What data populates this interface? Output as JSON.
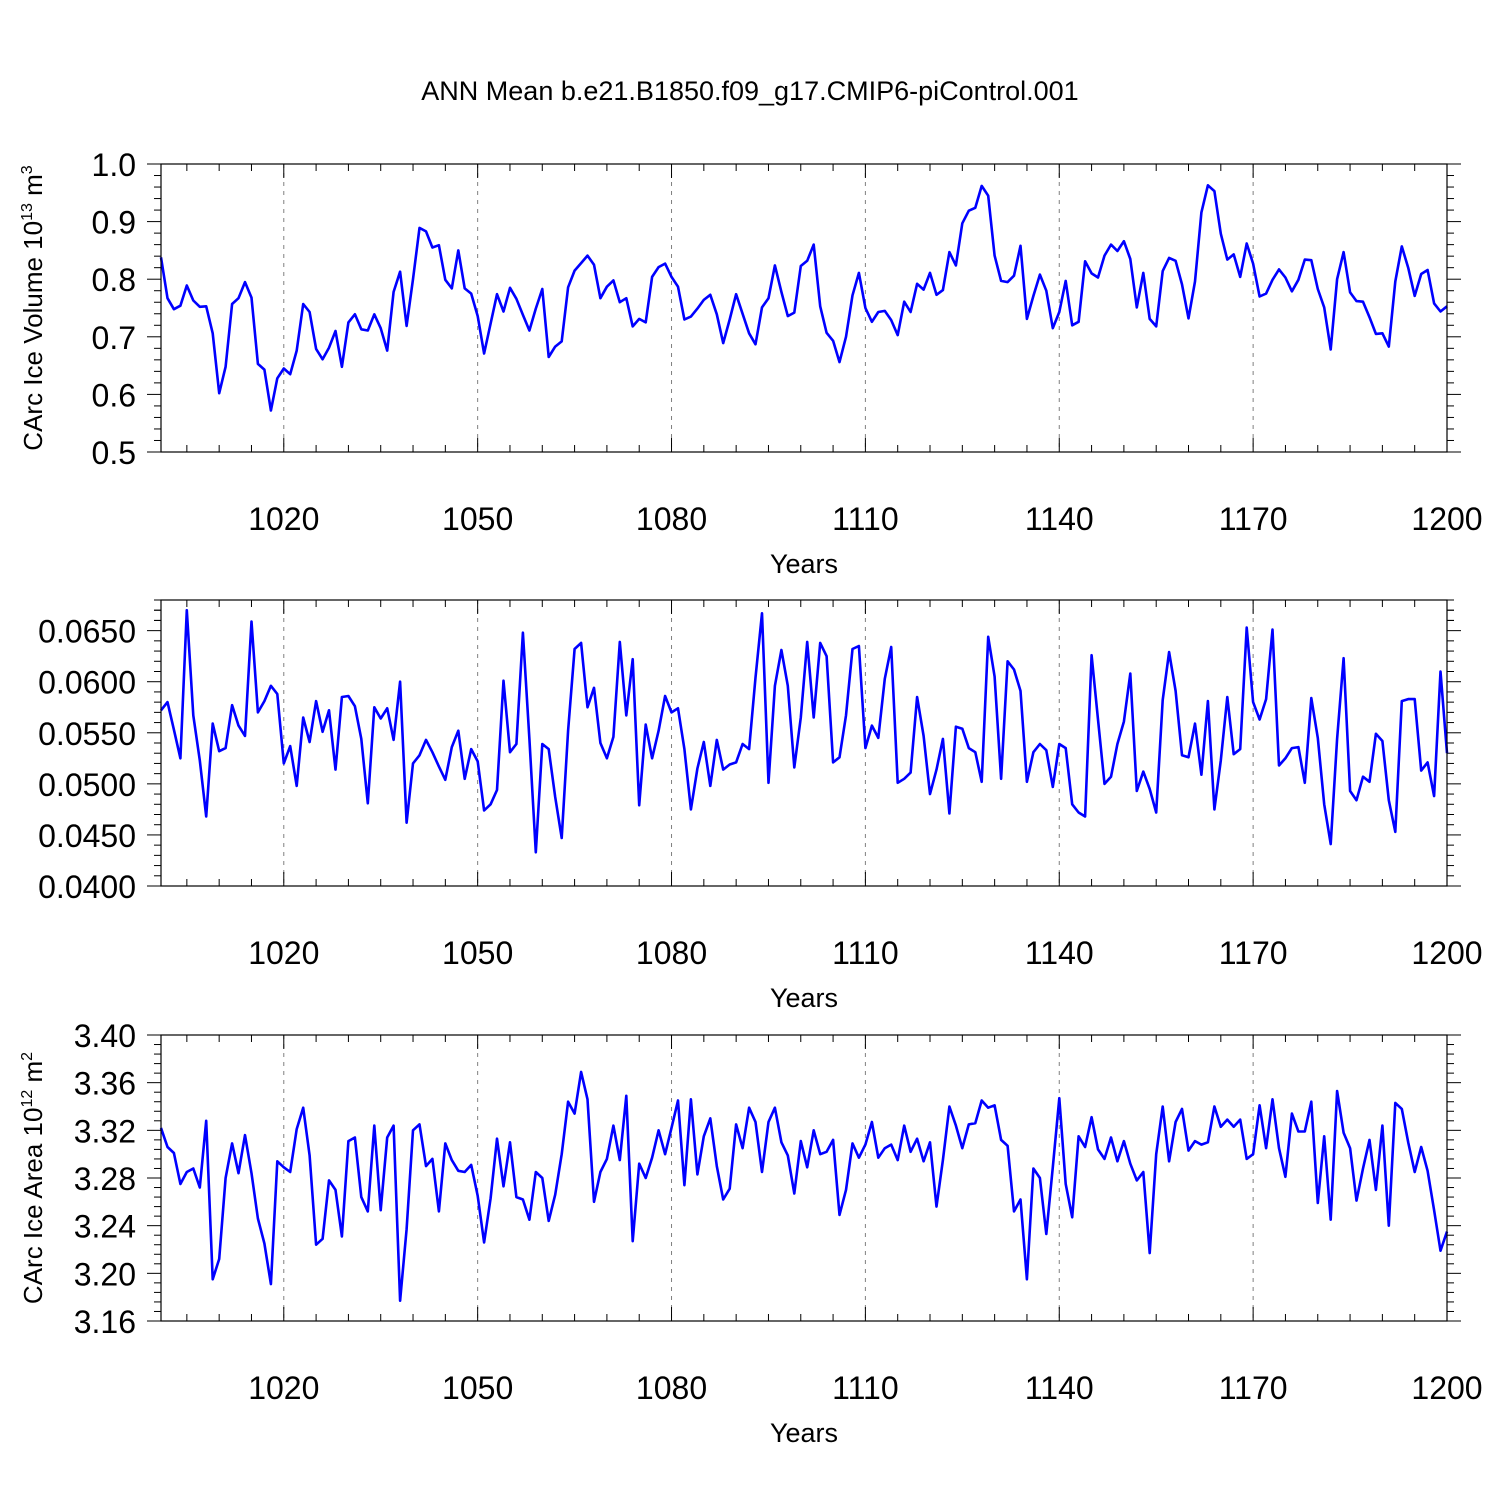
{
  "figure": {
    "title": "ANN Mean b.e21.B1850.f09_g17.CMIP6-piControl.001",
    "line_color": "#0000ff",
    "grid_color": "#808080"
  },
  "chart_data": [
    {
      "type": "line",
      "xlabel": "Years",
      "ylabel_main": "CArc Ice Volume 10",
      "ylabel_exp": "13",
      "ylabel_unit": " m",
      "ylabel_unit_exp": "3",
      "xlim": [
        1001,
        1200
      ],
      "ylim": [
        0.5,
        1.0
      ],
      "xticks": [
        1020,
        1050,
        1080,
        1110,
        1140,
        1170,
        1200
      ],
      "yticks": [
        0.5,
        0.6,
        0.7,
        0.8,
        0.9,
        1.0
      ],
      "ytick_labels": [
        "0.5",
        "0.6",
        "0.7",
        "0.8",
        "0.9",
        "1.0"
      ],
      "grid": "vertical dashed at major x ticks",
      "series": [
        {
          "x_start": 1001,
          "values": [
            0.838,
            0.767,
            0.748,
            0.754,
            0.789,
            0.763,
            0.752,
            0.753,
            0.706,
            0.602,
            0.648,
            0.757,
            0.767,
            0.795,
            0.768,
            0.653,
            0.643,
            0.572,
            0.628,
            0.645,
            0.635,
            0.676,
            0.757,
            0.743,
            0.679,
            0.661,
            0.681,
            0.71,
            0.648,
            0.725,
            0.739,
            0.713,
            0.711,
            0.739,
            0.715,
            0.676,
            0.778,
            0.813,
            0.719,
            0.8,
            0.889,
            0.883,
            0.855,
            0.859,
            0.799,
            0.784,
            0.85,
            0.784,
            0.775,
            0.736,
            0.671,
            0.723,
            0.774,
            0.744,
            0.785,
            0.766,
            0.738,
            0.711,
            0.749,
            0.783,
            0.665,
            0.683,
            0.692,
            0.786,
            0.815,
            0.828,
            0.841,
            0.825,
            0.767,
            0.787,
            0.798,
            0.76,
            0.767,
            0.718,
            0.731,
            0.725,
            0.804,
            0.821,
            0.827,
            0.804,
            0.787,
            0.73,
            0.735,
            0.749,
            0.764,
            0.773,
            0.739,
            0.689,
            0.73,
            0.774,
            0.74,
            0.706,
            0.687,
            0.751,
            0.767,
            0.824,
            0.778,
            0.736,
            0.742,
            0.823,
            0.832,
            0.86,
            0.753,
            0.707,
            0.693,
            0.656,
            0.7,
            0.772,
            0.811,
            0.75,
            0.726,
            0.743,
            0.745,
            0.729,
            0.703,
            0.761,
            0.743,
            0.792,
            0.782,
            0.811,
            0.773,
            0.781,
            0.847,
            0.824,
            0.897,
            0.919,
            0.924,
            0.962,
            0.945,
            0.841,
            0.797,
            0.795,
            0.806,
            0.858,
            0.731,
            0.771,
            0.808,
            0.78,
            0.715,
            0.743,
            0.797,
            0.72,
            0.726,
            0.831,
            0.81,
            0.803,
            0.841,
            0.86,
            0.849,
            0.866,
            0.835,
            0.751,
            0.811,
            0.731,
            0.718,
            0.814,
            0.837,
            0.832,
            0.791,
            0.732,
            0.796,
            0.916,
            0.963,
            0.953,
            0.879,
            0.834,
            0.843,
            0.804,
            0.862,
            0.827,
            0.77,
            0.775,
            0.799,
            0.817,
            0.803,
            0.779,
            0.799,
            0.834,
            0.833,
            0.783,
            0.751,
            0.678,
            0.8,
            0.847,
            0.777,
            0.762,
            0.761,
            0.734,
            0.705,
            0.706,
            0.683,
            0.796,
            0.857,
            0.82,
            0.771,
            0.809,
            0.816,
            0.758,
            0.744,
            0.753
          ]
        }
      ]
    },
    {
      "type": "line",
      "xlabel": "Years",
      "ylabel_main": "",
      "ylabel_exp": "",
      "ylabel_unit": "",
      "ylabel_unit_exp": "",
      "xlim": [
        1001,
        1200
      ],
      "ylim": [
        0.04,
        0.068
      ],
      "xticks": [
        1020,
        1050,
        1080,
        1110,
        1140,
        1170,
        1200
      ],
      "yticks": [
        0.04,
        0.045,
        0.05,
        0.055,
        0.06,
        0.065
      ],
      "ytick_labels": [
        "0.0400",
        "0.0450",
        "0.0500",
        "0.0550",
        "0.0600",
        "0.0650"
      ],
      "grid": "vertical dashed at major x ticks",
      "series": [
        {
          "x_start": 1001,
          "values": [
            0.0572,
            0.058,
            0.0553,
            0.0525,
            0.067,
            0.0567,
            0.0523,
            0.0468,
            0.0559,
            0.0532,
            0.0535,
            0.0577,
            0.0557,
            0.0547,
            0.0659,
            0.057,
            0.0581,
            0.0596,
            0.0588,
            0.052,
            0.0537,
            0.0498,
            0.0565,
            0.0541,
            0.0581,
            0.0551,
            0.0572,
            0.0514,
            0.0585,
            0.0586,
            0.0576,
            0.0544,
            0.0481,
            0.0575,
            0.0564,
            0.0574,
            0.0543,
            0.06,
            0.0462,
            0.052,
            0.0528,
            0.0543,
            0.0531,
            0.0517,
            0.0504,
            0.0536,
            0.0552,
            0.0505,
            0.0534,
            0.0522,
            0.0474,
            0.048,
            0.0494,
            0.0601,
            0.0531,
            0.0539,
            0.0648,
            0.0544,
            0.0433,
            0.0539,
            0.0534,
            0.0487,
            0.0447,
            0.0552,
            0.0632,
            0.0638,
            0.0575,
            0.0594,
            0.054,
            0.0525,
            0.0546,
            0.0639,
            0.0567,
            0.0622,
            0.0479,
            0.0558,
            0.0525,
            0.0552,
            0.0586,
            0.057,
            0.0574,
            0.0534,
            0.0475,
            0.0515,
            0.0541,
            0.0498,
            0.0543,
            0.0514,
            0.0519,
            0.0521,
            0.0539,
            0.0534,
            0.0604,
            0.0667,
            0.0501,
            0.0596,
            0.0631,
            0.0596,
            0.0516,
            0.0565,
            0.0639,
            0.0565,
            0.0638,
            0.0625,
            0.0521,
            0.0526,
            0.0567,
            0.0632,
            0.0635,
            0.0535,
            0.0557,
            0.0545,
            0.0603,
            0.0634,
            0.0501,
            0.0505,
            0.0511,
            0.0585,
            0.0547,
            0.049,
            0.0514,
            0.0544,
            0.0471,
            0.0556,
            0.0554,
            0.0535,
            0.0531,
            0.0502,
            0.0644,
            0.0605,
            0.0505,
            0.062,
            0.0612,
            0.0591,
            0.0502,
            0.0531,
            0.0539,
            0.0533,
            0.0497,
            0.0539,
            0.0535,
            0.048,
            0.0472,
            0.0468,
            0.0626,
            0.0563,
            0.05,
            0.0507,
            0.0539,
            0.0561,
            0.0608,
            0.0493,
            0.0512,
            0.0495,
            0.0472,
            0.0582,
            0.0629,
            0.0591,
            0.0528,
            0.0526,
            0.0559,
            0.0509,
            0.0581,
            0.0475,
            0.0523,
            0.0585,
            0.0529,
            0.0534,
            0.0653,
            0.058,
            0.0563,
            0.0583,
            0.0651,
            0.0518,
            0.0525,
            0.0535,
            0.0536,
            0.0501,
            0.0584,
            0.0545,
            0.048,
            0.0441,
            0.0544,
            0.0623,
            0.0493,
            0.0484,
            0.0507,
            0.0502,
            0.0549,
            0.0542,
            0.0484,
            0.0453,
            0.0581,
            0.0583,
            0.0583,
            0.0513,
            0.0521,
            0.0488,
            0.061,
            0.053
          ]
        }
      ]
    },
    {
      "type": "line",
      "xlabel": "Years",
      "ylabel_main": "CArc Ice Area 10",
      "ylabel_exp": "12",
      "ylabel_unit": " m",
      "ylabel_unit_exp": "2",
      "xlim": [
        1001,
        1200
      ],
      "ylim": [
        3.16,
        3.4
      ],
      "xticks": [
        1020,
        1050,
        1080,
        1110,
        1140,
        1170,
        1200
      ],
      "yticks": [
        3.16,
        3.2,
        3.24,
        3.28,
        3.32,
        3.36,
        3.4
      ],
      "ytick_labels": [
        "3.16",
        "3.20",
        "3.24",
        "3.28",
        "3.32",
        "3.36",
        "3.40"
      ],
      "grid": "vertical dashed at major x ticks",
      "series": [
        {
          "x_start": 1001,
          "values": [
            3.322,
            3.306,
            3.301,
            3.275,
            3.285,
            3.288,
            3.272,
            3.328,
            3.195,
            3.212,
            3.28,
            3.309,
            3.284,
            3.316,
            3.284,
            3.246,
            3.225,
            3.191,
            3.294,
            3.289,
            3.285,
            3.321,
            3.339,
            3.299,
            3.224,
            3.229,
            3.278,
            3.27,
            3.231,
            3.311,
            3.314,
            3.264,
            3.252,
            3.324,
            3.253,
            3.314,
            3.324,
            3.177,
            3.237,
            3.32,
            3.325,
            3.29,
            3.296,
            3.252,
            3.309,
            3.295,
            3.286,
            3.285,
            3.291,
            3.265,
            3.226,
            3.263,
            3.313,
            3.273,
            3.31,
            3.264,
            3.262,
            3.245,
            3.285,
            3.28,
            3.244,
            3.266,
            3.3,
            3.344,
            3.334,
            3.369,
            3.346,
            3.26,
            3.285,
            3.296,
            3.324,
            3.295,
            3.349,
            3.227,
            3.292,
            3.28,
            3.297,
            3.32,
            3.3,
            3.322,
            3.345,
            3.274,
            3.346,
            3.283,
            3.315,
            3.33,
            3.29,
            3.262,
            3.271,
            3.325,
            3.305,
            3.339,
            3.327,
            3.285,
            3.327,
            3.339,
            3.31,
            3.299,
            3.267,
            3.311,
            3.289,
            3.32,
            3.3,
            3.302,
            3.312,
            3.249,
            3.27,
            3.309,
            3.297,
            3.308,
            3.327,
            3.297,
            3.305,
            3.308,
            3.295,
            3.324,
            3.302,
            3.313,
            3.294,
            3.31,
            3.256,
            3.295,
            3.34,
            3.324,
            3.305,
            3.325,
            3.326,
            3.345,
            3.339,
            3.341,
            3.312,
            3.307,
            3.252,
            3.262,
            3.195,
            3.288,
            3.28,
            3.233,
            3.289,
            3.347,
            3.275,
            3.247,
            3.315,
            3.306,
            3.331,
            3.304,
            3.296,
            3.314,
            3.294,
            3.311,
            3.292,
            3.278,
            3.285,
            3.217,
            3.3,
            3.34,
            3.294,
            3.327,
            3.338,
            3.303,
            3.311,
            3.308,
            3.31,
            3.34,
            3.323,
            3.329,
            3.323,
            3.329,
            3.296,
            3.3,
            3.341,
            3.305,
            3.346,
            3.305,
            3.281,
            3.334,
            3.319,
            3.319,
            3.344,
            3.259,
            3.315,
            3.245,
            3.353,
            3.318,
            3.305,
            3.261,
            3.288,
            3.312,
            3.27,
            3.324,
            3.24,
            3.343,
            3.338,
            3.31,
            3.285,
            3.306,
            3.286,
            3.253,
            3.219,
            3.235
          ]
        }
      ]
    }
  ]
}
